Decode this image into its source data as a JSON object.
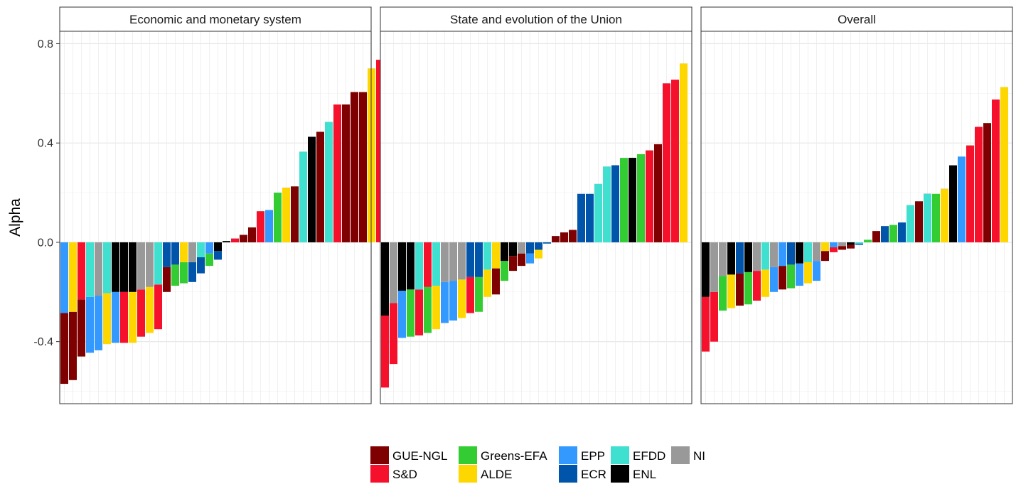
{
  "chart_data": {
    "type": "bar",
    "ylabel": "Alpha",
    "xlabel": "",
    "ylim": [
      -0.65,
      0.85
    ],
    "y_ticks": [
      -0.4,
      0.0,
      0.4,
      0.8
    ],
    "y_tick_labels": [
      "-0.4",
      "0.0",
      "0.4",
      "0.8"
    ],
    "grid": true,
    "legend_position": "bottom",
    "groups": [
      {
        "name": "GUE-NGL",
        "color": "#7f0000"
      },
      {
        "name": "Greens-EFA",
        "color": "#33cc33"
      },
      {
        "name": "EPP",
        "color": "#3399ff"
      },
      {
        "name": "EFDD",
        "color": "#40e0d0"
      },
      {
        "name": "NI",
        "color": "#999999"
      },
      {
        "name": "S&D",
        "color": "#f5102c"
      },
      {
        "name": "ALDE",
        "color": "#ffd700"
      },
      {
        "name": "ECR",
        "color": "#0055aa"
      },
      {
        "name": "ENL",
        "color": "#000000"
      }
    ],
    "panels": [
      {
        "title": "Economic and monetary system",
        "pairs": [
          [
            "GUE-NGL",
            "EPP",
            -0.57,
            -0.285
          ],
          [
            "GUE-NGL",
            "ALDE",
            -0.555,
            -0.28
          ],
          [
            "GUE-NGL",
            "S&D",
            -0.46,
            -0.23
          ],
          [
            "EPP",
            "EFDD",
            -0.445,
            -0.22
          ],
          [
            "EPP",
            "NI",
            -0.435,
            -0.215
          ],
          [
            "ALDE",
            "EFDD",
            -0.41,
            -0.205
          ],
          [
            "EPP",
            "ENL",
            -0.405,
            -0.2
          ],
          [
            "S&D",
            "ENL",
            -0.405,
            -0.2
          ],
          [
            "ALDE",
            "ENL",
            -0.405,
            -0.2
          ],
          [
            "S&D",
            "NI",
            -0.38,
            -0.19
          ],
          [
            "ALDE",
            "NI",
            -0.365,
            -0.18
          ],
          [
            "S&D",
            "EFDD",
            -0.35,
            -0.17
          ],
          [
            "GUE-NGL",
            "ECR",
            -0.2,
            -0.1
          ],
          [
            "Greens-EFA",
            "ECR",
            -0.175,
            -0.09
          ],
          [
            "Greens-EFA",
            "ALDE",
            -0.165,
            -0.08
          ],
          [
            "ECR",
            "NI",
            -0.16,
            -0.08
          ],
          [
            "ECR",
            "EFDD",
            -0.125,
            -0.06
          ],
          [
            "Greens-EFA",
            "EPP",
            -0.095,
            -0.045
          ],
          [
            "ECR",
            "ENL",
            -0.07,
            -0.035
          ],
          [
            "Greens-EFA",
            "ENL",
            0.0,
            0.005
          ],
          [
            "ECR",
            "S&D",
            0.0,
            0.015
          ],
          [
            "NI",
            "GUE-NGL",
            0.0,
            0.03
          ],
          [
            "Greens-EFA",
            "GUE-NGL",
            0.0,
            0.06
          ],
          [
            "Greens-EFA",
            "S&D",
            0.065,
            0.125
          ],
          [
            "ECR",
            "EPP",
            0.065,
            0.13
          ],
          [
            "EFDD",
            "Greens-EFA",
            0.1,
            0.2
          ],
          [
            "ECR",
            "ALDE",
            0.11,
            0.22
          ],
          [
            "Greens-EFA",
            "GUE-NGL",
            0.11,
            0.225
          ],
          [
            "NI",
            "EFDD",
            0.18,
            0.365
          ],
          [
            "NI",
            "ENL",
            0.21,
            0.425
          ],
          [
            "NI",
            "GUE-NGL",
            0.22,
            0.445
          ],
          [
            "ENL",
            "EFDD",
            0.24,
            0.485
          ],
          [
            "ALDE",
            "S&D",
            0.275,
            0.555
          ],
          [
            "ENL",
            "GUE-NGL",
            0.275,
            0.555
          ],
          [
            "GUE-NGL",
            "GUE-NGL",
            0.3,
            0.605
          ],
          [
            "EFDD",
            "GUE-NGL",
            0.3,
            0.605
          ],
          [
            "EPP",
            "ALDE",
            0.35,
            0.7
          ],
          [
            "EPP",
            "S&D",
            0.365,
            0.735
          ]
        ]
      },
      {
        "title": "State and evolution of the Union",
        "pairs": [
          [
            "S&D",
            "ENL",
            -0.585,
            -0.295
          ],
          [
            "S&D",
            "NI",
            -0.49,
            -0.245
          ],
          [
            "EPP",
            "ENL",
            -0.385,
            -0.195
          ],
          [
            "Greens-EFA",
            "ENL",
            -0.38,
            -0.19
          ],
          [
            "S&D",
            "EFDD",
            -0.375,
            -0.19
          ],
          [
            "Greens-EFA",
            "S&D",
            -0.365,
            -0.18
          ],
          [
            "ALDE",
            "EFDD",
            -0.35,
            -0.175
          ],
          [
            "EPP",
            "NI",
            -0.325,
            -0.16
          ],
          [
            "EPP",
            "NI",
            -0.315,
            -0.155
          ],
          [
            "ALDE",
            "NI",
            -0.305,
            -0.15
          ],
          [
            "S&D",
            "ECR",
            -0.285,
            -0.14
          ],
          [
            "Greens-EFA",
            "ECR",
            -0.28,
            -0.14
          ],
          [
            "ALDE",
            "EFDD",
            -0.22,
            -0.11
          ],
          [
            "GUE-NGL",
            "ALDE",
            -0.21,
            -0.105
          ],
          [
            "Greens-EFA",
            "ENL",
            -0.155,
            -0.075
          ],
          [
            "GUE-NGL",
            "ENL",
            -0.115,
            -0.055
          ],
          [
            "GUE-NGL",
            "NI",
            -0.095,
            -0.045
          ],
          [
            "EPP",
            "ECR",
            -0.085,
            -0.045
          ],
          [
            "ALDE",
            "ECR",
            -0.065,
            -0.03
          ],
          [
            "EFDD",
            "ECR",
            0.0,
            -0.005
          ],
          [
            "EPP",
            "GUE-NGL",
            0.01,
            0.025
          ],
          [
            "ALDE",
            "GUE-NGL",
            0.015,
            0.04
          ],
          [
            "EPP",
            "GUE-NGL",
            0.025,
            0.05
          ],
          [
            "NI",
            "ECR",
            0.1,
            0.195
          ],
          [
            "EFDD",
            "ECR",
            0.1,
            0.195
          ],
          [
            "NI",
            "EFDD",
            0.115,
            0.235
          ],
          [
            "NI",
            "EFDD",
            0.15,
            0.305
          ],
          [
            "ENL",
            "ECR",
            0.15,
            0.31
          ],
          [
            "NI",
            "Greens-EFA",
            0.17,
            0.34
          ],
          [
            "ENL",
            "ENL",
            0.17,
            0.34
          ],
          [
            "ALDE",
            "Greens-EFA",
            0.175,
            0.355
          ],
          [
            "Greens-EFA",
            "S&D",
            0.185,
            0.37
          ],
          [
            "Greens-EFA",
            "GUE-NGL",
            0.195,
            0.395
          ],
          [
            "EPP",
            "S&D",
            0.32,
            0.64
          ],
          [
            "ALDE",
            "S&D",
            0.325,
            0.655
          ],
          [
            "EPP",
            "ALDE",
            0.36,
            0.72
          ]
        ]
      },
      {
        "title": "Overall",
        "pairs": [
          [
            "S&D",
            "ENL",
            -0.44,
            -0.22
          ],
          [
            "S&D",
            "NI",
            -0.4,
            -0.2
          ],
          [
            "Greens-EFA",
            "NI",
            -0.275,
            -0.135
          ],
          [
            "ALDE",
            "ENL",
            -0.265,
            -0.13
          ],
          [
            "GUE-NGL",
            "ECR",
            -0.255,
            -0.125
          ],
          [
            "Greens-EFA",
            "ENL",
            -0.25,
            -0.12
          ],
          [
            "S&D",
            "NI",
            -0.235,
            -0.115
          ],
          [
            "ALDE",
            "EFDD",
            -0.22,
            -0.11
          ],
          [
            "EPP",
            "NI",
            -0.2,
            -0.1
          ],
          [
            "GUE-NGL",
            "EPP",
            -0.19,
            -0.095
          ],
          [
            "Greens-EFA",
            "ECR",
            -0.185,
            -0.09
          ],
          [
            "EPP",
            "ENL",
            -0.175,
            -0.085
          ],
          [
            "ALDE",
            "EFDD",
            -0.165,
            -0.08
          ],
          [
            "EPP",
            "NI",
            -0.155,
            -0.075
          ],
          [
            "GUE-NGL",
            "ALDE",
            -0.075,
            -0.035
          ],
          [
            "S&D",
            "EPP",
            -0.04,
            -0.02
          ],
          [
            "GUE-NGL",
            "NI",
            -0.03,
            -0.015
          ],
          [
            "GUE-NGL",
            "ENL",
            -0.025,
            -0.01
          ],
          [
            "ECR",
            "EFDD",
            -0.01,
            -0.005
          ],
          [
            "EFDD",
            "Greens-EFA",
            0.0,
            0.01
          ],
          [
            "S&D",
            "GUE-NGL",
            0.025,
            0.045
          ],
          [
            "NI",
            "ECR",
            0.035,
            0.065
          ],
          [
            "NI",
            "Greens-EFA",
            0.035,
            0.07
          ],
          [
            "ENL",
            "ECR",
            0.04,
            0.08
          ],
          [
            "NI",
            "EFDD",
            0.075,
            0.15
          ],
          [
            "EFDD",
            "GUE-NGL",
            0.085,
            0.165
          ],
          [
            "ENL",
            "EFDD",
            0.095,
            0.195
          ],
          [
            "ALDE",
            "Greens-EFA",
            0.1,
            0.195
          ],
          [
            "ECR",
            "ALDE",
            0.105,
            0.215
          ],
          [
            "NI",
            "ENL",
            0.155,
            0.31
          ],
          [
            "ECR",
            "EPP",
            0.17,
            0.345
          ],
          [
            "Greens-EFA",
            "S&D",
            0.195,
            0.39
          ],
          [
            "EPP",
            "S&D",
            0.23,
            0.465
          ],
          [
            "Greens-EFA",
            "GUE-NGL",
            0.24,
            0.48
          ],
          [
            "ALDE",
            "S&D",
            0.285,
            0.575
          ],
          [
            "EPP",
            "ALDE",
            0.315,
            0.625
          ]
        ]
      }
    ]
  }
}
